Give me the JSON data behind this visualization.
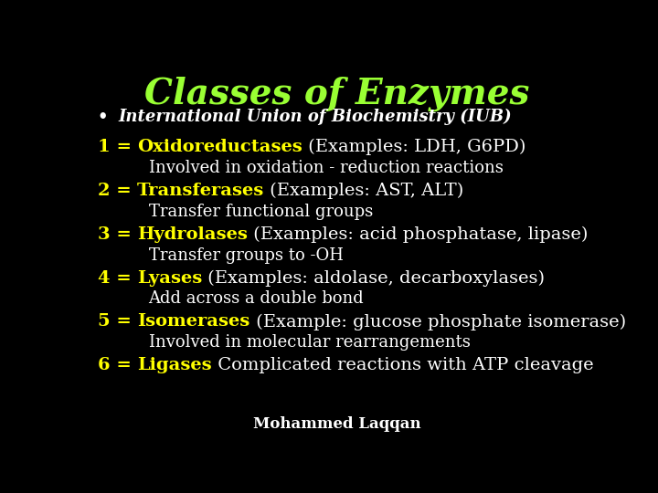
{
  "title": "Classes of Enzymes",
  "title_color": "#99ff33",
  "title_fontsize": 28,
  "background_color": "#000000",
  "bullet_text": "International Union of Biochemistry (IUB)",
  "bullet_color": "#ffffff",
  "bullet_fontsize": 13,
  "entries": [
    {
      "number": "1 = ",
      "enzyme": "Oxidoreductases",
      "rest": " (Examples: LDH, G6PD)",
      "sub": "Involved in oxidation - reduction reactions"
    },
    {
      "number": "2 = ",
      "enzyme": "Transferases",
      "rest": " (Examples: AST, ALT)",
      "sub": "Transfer functional groups"
    },
    {
      "number": "3 = ",
      "enzyme": "Hydrolases",
      "rest": " (Examples: acid phosphatase, lipase)",
      "sub": "Transfer groups to -OH"
    },
    {
      "number": "4 = ",
      "enzyme": "Lyases",
      "rest": " (Examples: aldolase, decarboxylases)",
      "sub": "Add across a double bond"
    },
    {
      "number": "5 = ",
      "enzyme": "Isomerases",
      "rest": " (Example: glucose phosphate isomerase)",
      "sub": "Involved in molecular rearrangements"
    },
    {
      "number": "6 = ",
      "enzyme": "Ligases",
      "rest": " Complicated reactions with ATP cleavage",
      "sub": ""
    }
  ],
  "enzyme_color": "#ffff00",
  "number_color": "#ffff00",
  "text_color": "#ffffff",
  "main_fontsize": 14,
  "sub_fontsize": 13,
  "footer_text": "Mohammed Laqqan",
  "footer_color": "#ffffff",
  "footer_fontsize": 12
}
